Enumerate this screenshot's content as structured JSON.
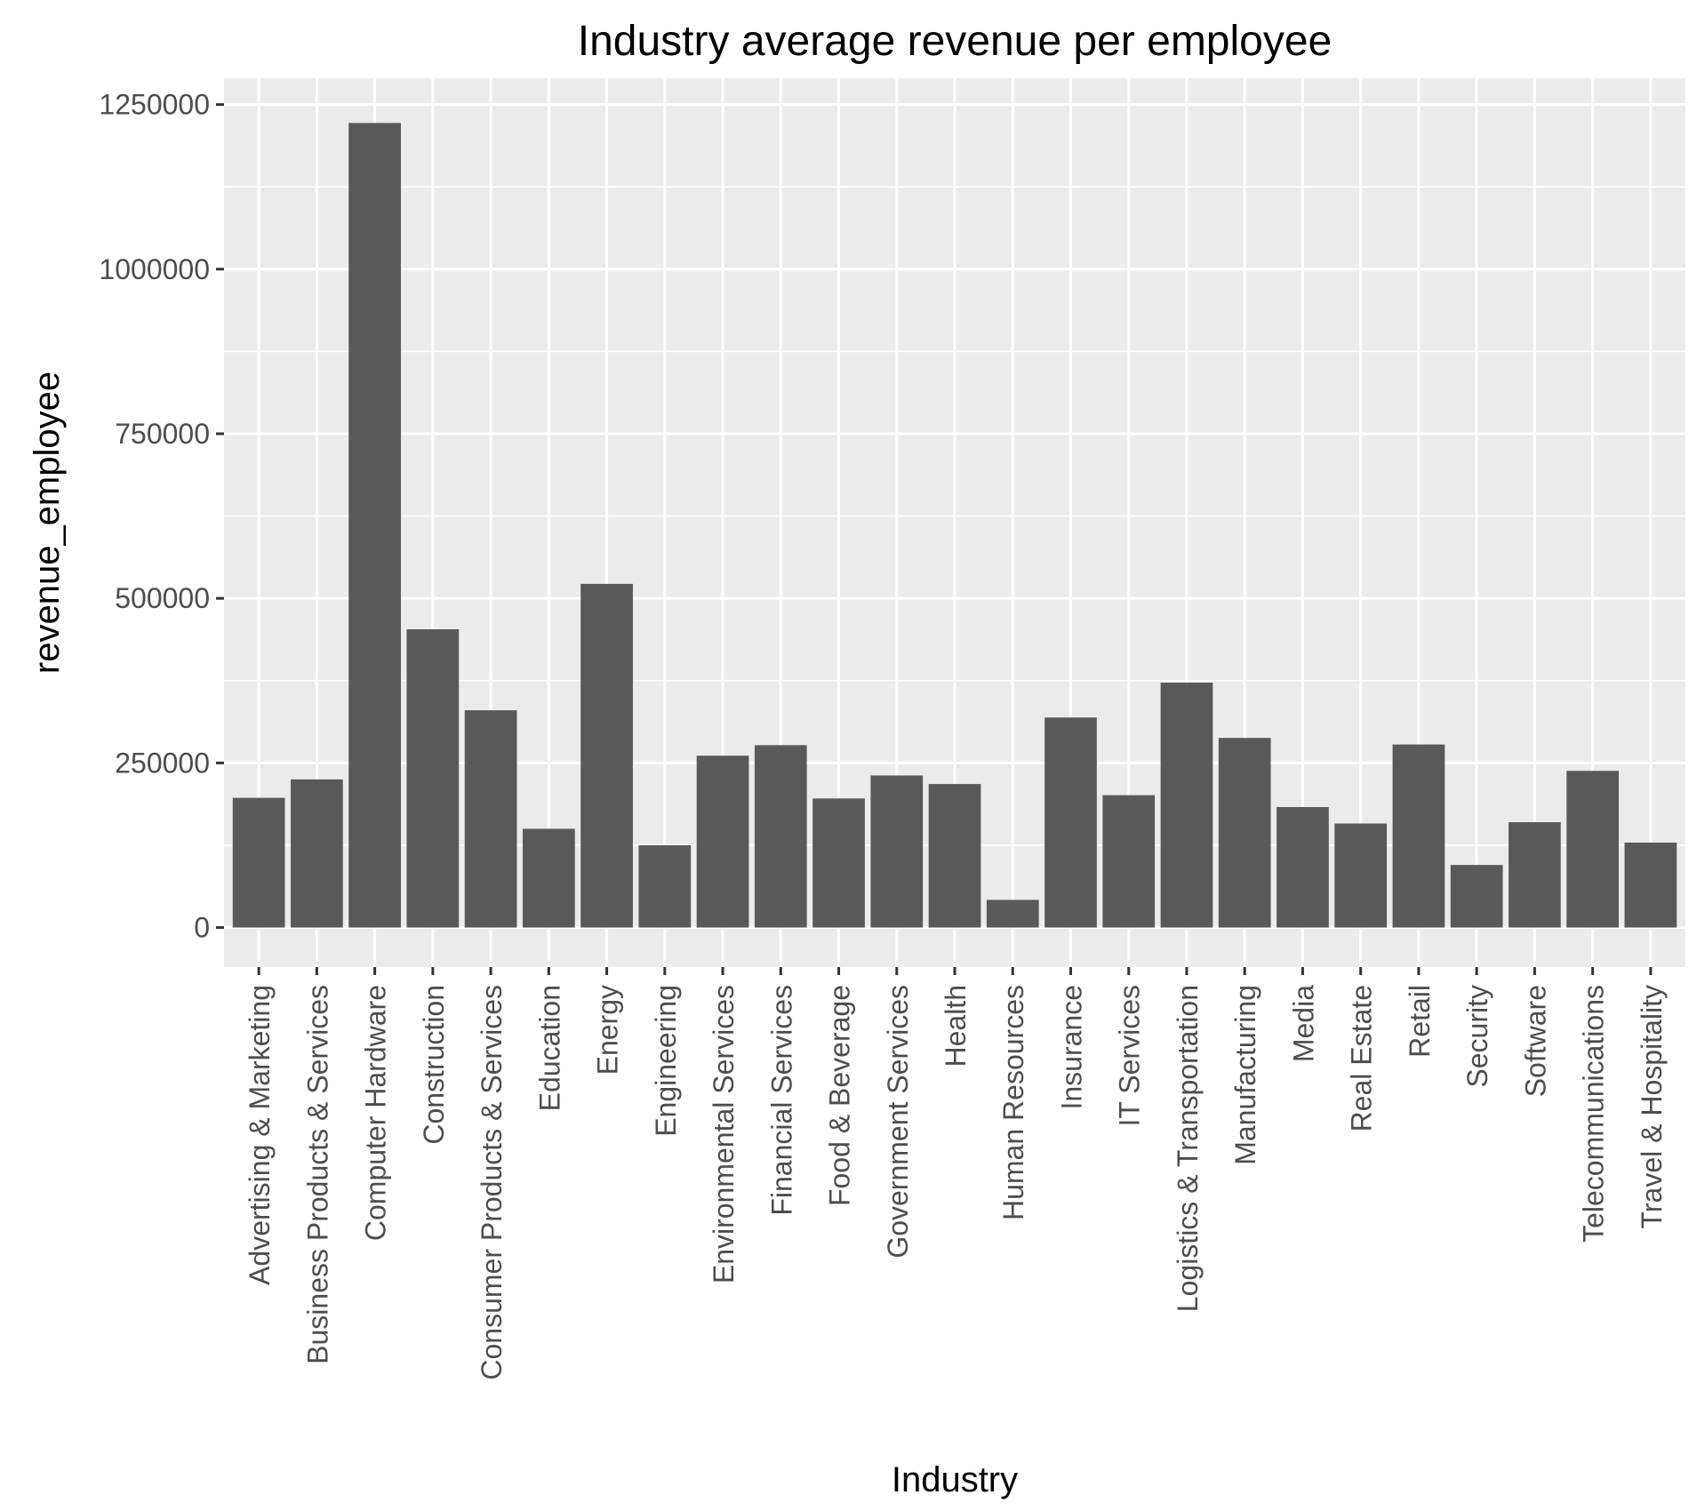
{
  "chart_data": {
    "type": "bar",
    "title": "Industry average revenue per employee",
    "xlabel": "Industry",
    "ylabel": "revenue_employee",
    "ylim": [
      -60000,
      1290000
    ],
    "yticks": [
      0,
      250000,
      500000,
      750000,
      1000000,
      1250000
    ],
    "ytick_labels": [
      "0",
      "250000",
      "500000",
      "750000",
      "1000000",
      "1250000"
    ],
    "grid": true,
    "bar_color": "#595959",
    "panel_color": "#ebebeb",
    "categories": [
      "Advertising & Marketing",
      "Business Products & Services",
      "Computer Hardware",
      "Construction",
      "Consumer Products & Services",
      "Education",
      "Energy",
      "Engineering",
      "Environmental Services",
      "Financial Services",
      "Food & Beverage",
      "Government Services",
      "Health",
      "Human Resources",
      "Insurance",
      "IT Services",
      "Logistics & Transportation",
      "Manufacturing",
      "Media",
      "Real Estate",
      "Retail",
      "Security",
      "Software",
      "Telecommunications",
      "Travel & Hospitality"
    ],
    "values": [
      197000,
      225000,
      1222000,
      453000,
      330000,
      150000,
      522000,
      125000,
      261000,
      277000,
      196000,
      231000,
      218000,
      42000,
      319000,
      201000,
      372000,
      288000,
      183000,
      158000,
      278000,
      95000,
      160000,
      238000,
      129000
    ]
  }
}
